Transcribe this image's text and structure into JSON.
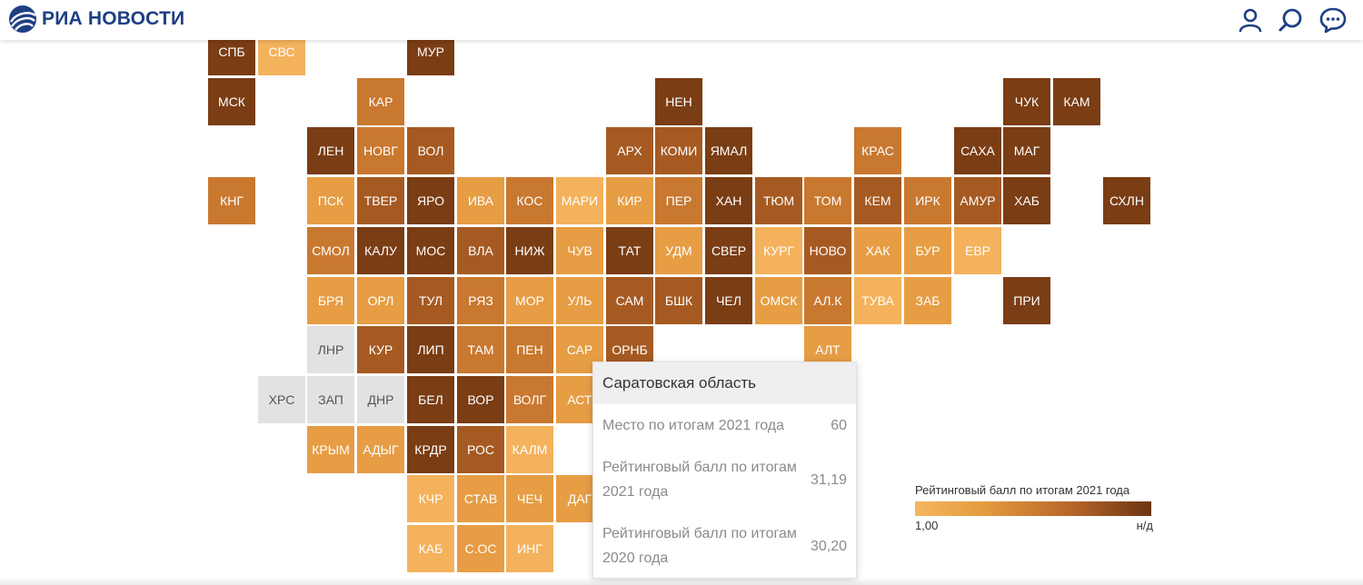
{
  "header": {
    "logo_text": "РИА НОВОСТИ",
    "brand_color": "#1e3f84",
    "icons": [
      "globe-logo-icon",
      "user-icon",
      "search-icon",
      "chat-icon"
    ]
  },
  "palette": {
    "l1": "#f4b25c",
    "l2": "#e69d44",
    "l3": "#c9782f",
    "l4": "#a65a22",
    "l5": "#7a3d14",
    "nodata": "#e2e2e2"
  },
  "regions": [
    {
      "code": "СПБ",
      "col": 0,
      "row": 0,
      "lvl": "l5"
    },
    {
      "code": "СВС",
      "col": 1,
      "row": 0,
      "lvl": "l1"
    },
    {
      "code": "МУР",
      "col": 4,
      "row": 0,
      "lvl": "l5"
    },
    {
      "code": "МСК",
      "col": 0,
      "row": 1,
      "lvl": "l5"
    },
    {
      "code": "КАР",
      "col": 3,
      "row": 1,
      "lvl": "l3"
    },
    {
      "code": "НЕН",
      "col": 9,
      "row": 1,
      "lvl": "l5"
    },
    {
      "code": "ЧУК",
      "col": 16,
      "row": 1,
      "lvl": "l5"
    },
    {
      "code": "КАМ",
      "col": 17,
      "row": 1,
      "lvl": "l5"
    },
    {
      "code": "ЛЕН",
      "col": 2,
      "row": 2,
      "lvl": "l5"
    },
    {
      "code": "НОВГ",
      "col": 3,
      "row": 2,
      "lvl": "l3"
    },
    {
      "code": "ВОЛ",
      "col": 4,
      "row": 2,
      "lvl": "l4"
    },
    {
      "code": "АРХ",
      "col": 8,
      "row": 2,
      "lvl": "l4"
    },
    {
      "code": "КОМИ",
      "col": 9,
      "row": 2,
      "lvl": "l4"
    },
    {
      "code": "ЯМАЛ",
      "col": 10,
      "row": 2,
      "lvl": "l5"
    },
    {
      "code": "КРАС",
      "col": 13,
      "row": 2,
      "lvl": "l3"
    },
    {
      "code": "САХА",
      "col": 15,
      "row": 2,
      "lvl": "l5"
    },
    {
      "code": "МАГ",
      "col": 16,
      "row": 2,
      "lvl": "l5"
    },
    {
      "code": "КНГ",
      "col": 0,
      "row": 3,
      "lvl": "l3"
    },
    {
      "code": "ПСК",
      "col": 2,
      "row": 3,
      "lvl": "l2"
    },
    {
      "code": "ТВЕР",
      "col": 3,
      "row": 3,
      "lvl": "l4"
    },
    {
      "code": "ЯРО",
      "col": 4,
      "row": 3,
      "lvl": "l5"
    },
    {
      "code": "ИВА",
      "col": 5,
      "row": 3,
      "lvl": "l2"
    },
    {
      "code": "КОС",
      "col": 6,
      "row": 3,
      "lvl": "l3"
    },
    {
      "code": "МАРИ",
      "col": 7,
      "row": 3,
      "lvl": "l1"
    },
    {
      "code": "КИР",
      "col": 8,
      "row": 3,
      "lvl": "l2"
    },
    {
      "code": "ПЕР",
      "col": 9,
      "row": 3,
      "lvl": "l3"
    },
    {
      "code": "ХАН",
      "col": 10,
      "row": 3,
      "lvl": "l5"
    },
    {
      "code": "ТЮМ",
      "col": 11,
      "row": 3,
      "lvl": "l4"
    },
    {
      "code": "ТОМ",
      "col": 12,
      "row": 3,
      "lvl": "l3"
    },
    {
      "code": "КЕМ",
      "col": 13,
      "row": 3,
      "lvl": "l4"
    },
    {
      "code": "ИРК",
      "col": 14,
      "row": 3,
      "lvl": "l3"
    },
    {
      "code": "АМУР",
      "col": 15,
      "row": 3,
      "lvl": "l4"
    },
    {
      "code": "ХАБ",
      "col": 16,
      "row": 3,
      "lvl": "l5"
    },
    {
      "code": "СХЛН",
      "col": 18,
      "row": 3,
      "lvl": "l5"
    },
    {
      "code": "СМОЛ",
      "col": 2,
      "row": 4,
      "lvl": "l3"
    },
    {
      "code": "КАЛУ",
      "col": 3,
      "row": 4,
      "lvl": "l5"
    },
    {
      "code": "МОС",
      "col": 4,
      "row": 4,
      "lvl": "l5"
    },
    {
      "code": "ВЛА",
      "col": 5,
      "row": 4,
      "lvl": "l4"
    },
    {
      "code": "НИЖ",
      "col": 6,
      "row": 4,
      "lvl": "l5"
    },
    {
      "code": "ЧУВ",
      "col": 7,
      "row": 4,
      "lvl": "l2"
    },
    {
      "code": "ТАТ",
      "col": 8,
      "row": 4,
      "lvl": "l5"
    },
    {
      "code": "УДМ",
      "col": 9,
      "row": 4,
      "lvl": "l2"
    },
    {
      "code": "СВЕР",
      "col": 10,
      "row": 4,
      "lvl": "l5"
    },
    {
      "code": "КУРГ",
      "col": 11,
      "row": 4,
      "lvl": "l1"
    },
    {
      "code": "НОВО",
      "col": 12,
      "row": 4,
      "lvl": "l4"
    },
    {
      "code": "ХАК",
      "col": 13,
      "row": 4,
      "lvl": "l2"
    },
    {
      "code": "БУР",
      "col": 14,
      "row": 4,
      "lvl": "l2"
    },
    {
      "code": "ЕВР",
      "col": 15,
      "row": 4,
      "lvl": "l1"
    },
    {
      "code": "БРЯ",
      "col": 2,
      "row": 5,
      "lvl": "l2"
    },
    {
      "code": "ОРЛ",
      "col": 3,
      "row": 5,
      "lvl": "l2"
    },
    {
      "code": "ТУЛ",
      "col": 4,
      "row": 5,
      "lvl": "l4"
    },
    {
      "code": "РЯЗ",
      "col": 5,
      "row": 5,
      "lvl": "l3"
    },
    {
      "code": "МОР",
      "col": 6,
      "row": 5,
      "lvl": "l2"
    },
    {
      "code": "УЛЬ",
      "col": 7,
      "row": 5,
      "lvl": "l2"
    },
    {
      "code": "САМ",
      "col": 8,
      "row": 5,
      "lvl": "l4"
    },
    {
      "code": "БШК",
      "col": 9,
      "row": 5,
      "lvl": "l4"
    },
    {
      "code": "ЧЕЛ",
      "col": 10,
      "row": 5,
      "lvl": "l5"
    },
    {
      "code": "ОМСК",
      "col": 11,
      "row": 5,
      "lvl": "l2"
    },
    {
      "code": "АЛ.К",
      "col": 12,
      "row": 5,
      "lvl": "l3"
    },
    {
      "code": "ТУВА",
      "col": 13,
      "row": 5,
      "lvl": "l1"
    },
    {
      "code": "ЗАБ",
      "col": 14,
      "row": 5,
      "lvl": "l2"
    },
    {
      "code": "ПРИ",
      "col": 16,
      "row": 5,
      "lvl": "l5"
    },
    {
      "code": "ЛНР",
      "col": 2,
      "row": 6,
      "lvl": "nodata"
    },
    {
      "code": "КУР",
      "col": 3,
      "row": 6,
      "lvl": "l4"
    },
    {
      "code": "ЛИП",
      "col": 4,
      "row": 6,
      "lvl": "l5"
    },
    {
      "code": "ТАМ",
      "col": 5,
      "row": 6,
      "lvl": "l3"
    },
    {
      "code": "ПЕН",
      "col": 6,
      "row": 6,
      "lvl": "l3"
    },
    {
      "code": "САР",
      "col": 7,
      "row": 6,
      "lvl": "l2"
    },
    {
      "code": "ОРНБ",
      "col": 8,
      "row": 6,
      "lvl": "l4"
    },
    {
      "code": "АЛТ",
      "col": 12,
      "row": 6,
      "lvl": "l2"
    },
    {
      "code": "ХРС",
      "col": 1,
      "row": 7,
      "lvl": "nodata"
    },
    {
      "code": "ЗАП",
      "col": 2,
      "row": 7,
      "lvl": "nodata"
    },
    {
      "code": "ДНР",
      "col": 3,
      "row": 7,
      "lvl": "nodata"
    },
    {
      "code": "БЕЛ",
      "col": 4,
      "row": 7,
      "lvl": "l5"
    },
    {
      "code": "ВОР",
      "col": 5,
      "row": 7,
      "lvl": "l5"
    },
    {
      "code": "ВОЛГ",
      "col": 6,
      "row": 7,
      "lvl": "l3"
    },
    {
      "code": "АСТ",
      "col": 7,
      "row": 7,
      "lvl": "l2"
    },
    {
      "code": "КРЫМ",
      "col": 2,
      "row": 8,
      "lvl": "l2"
    },
    {
      "code": "АДЫГ",
      "col": 3,
      "row": 8,
      "lvl": "l2"
    },
    {
      "code": "КРДР",
      "col": 4,
      "row": 8,
      "lvl": "l5"
    },
    {
      "code": "РОС",
      "col": 5,
      "row": 8,
      "lvl": "l4"
    },
    {
      "code": "КАЛМ",
      "col": 6,
      "row": 8,
      "lvl": "l1"
    },
    {
      "code": "КЧР",
      "col": 4,
      "row": 9,
      "lvl": "l1"
    },
    {
      "code": "СТАВ",
      "col": 5,
      "row": 9,
      "lvl": "l2"
    },
    {
      "code": "ЧЕЧ",
      "col": 6,
      "row": 9,
      "lvl": "l2"
    },
    {
      "code": "ДАГ",
      "col": 7,
      "row": 9,
      "lvl": "l2"
    },
    {
      "code": "КАБ",
      "col": 4,
      "row": 10,
      "lvl": "l1"
    },
    {
      "code": "С.ОС",
      "col": 5,
      "row": 10,
      "lvl": "l2"
    },
    {
      "code": "ИНГ",
      "col": 6,
      "row": 10,
      "lvl": "l1"
    }
  ],
  "tooltip": {
    "region_name": "Саратовская область",
    "rows": [
      {
        "label": "Место по итогам 2021 года",
        "value": "60"
      },
      {
        "label": "Рейтинговый балл по итогам 2021 года",
        "value": "31,19"
      },
      {
        "label": "Рейтинговый балл по итогам 2020 года",
        "value": "30,20"
      }
    ]
  },
  "legend": {
    "title": "Рейтинговый балл по итогам 2021 года",
    "min_label": "1,00",
    "max_label": "н/д"
  }
}
